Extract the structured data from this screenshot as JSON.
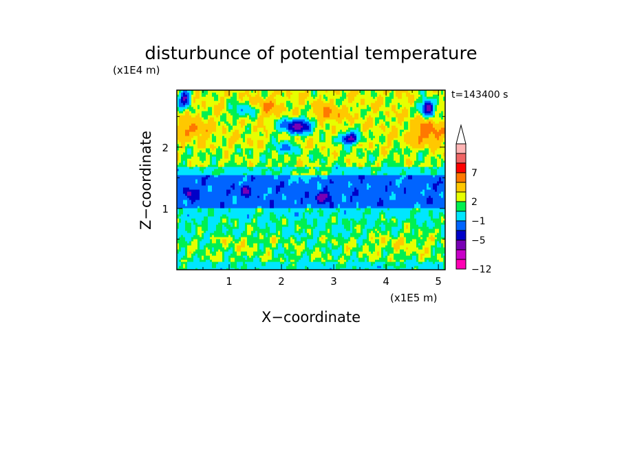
{
  "chart_data": {
    "type": "heatmap",
    "title": "disturbunce of potential temperature",
    "xlabel": "X−coordinate",
    "ylabel": "Z−coordinate",
    "x_scale_label": "(x1E5 m)",
    "y_scale_label": "(x1E4 m)",
    "time_label": "t=143400 s",
    "xlim": [
      0,
      5.13
    ],
    "ylim": [
      0,
      2.93
    ],
    "x_ticks": [
      {
        "value": 1,
        "label": "1"
      },
      {
        "value": 2,
        "label": "2"
      },
      {
        "value": 3,
        "label": "3"
      },
      {
        "value": 4,
        "label": "4"
      },
      {
        "value": 5,
        "label": "5"
      }
    ],
    "y_ticks": [
      {
        "value": 1,
        "label": "1"
      },
      {
        "value": 2,
        "label": "2"
      }
    ],
    "colorbar": {
      "levels": [
        -12,
        -10,
        -8,
        -5,
        -3,
        -1,
        1,
        2,
        3,
        5,
        7,
        9,
        11
      ],
      "colors": [
        "#ff00b4",
        "#c800c8",
        "#7800b4",
        "#0000c8",
        "#0064ff",
        "#00e6ff",
        "#00f050",
        "#e6ff00",
        "#ffc800",
        "#ff7800",
        "#ff0000",
        "#f06464",
        "#ffb4b4"
      ],
      "extend_top_color": "#ffffff",
      "labels": [
        {
          "value": -12,
          "label": "−12"
        },
        {
          "value": -5,
          "label": "−5"
        },
        {
          "value": -1,
          "label": "−1"
        },
        {
          "value": 2,
          "label": "2"
        },
        {
          "value": 7,
          "label": "7"
        }
      ]
    },
    "field_features": [
      {
        "desc": "cold",
        "x": 2.3,
        "z": 2.35,
        "value": -6
      },
      {
        "desc": "cold",
        "x": 3.3,
        "z": 2.15,
        "value": -6
      },
      {
        "desc": "cold",
        "x": 4.8,
        "z": 2.65,
        "value": -7
      },
      {
        "desc": "cold",
        "x": 0.2,
        "z": 2.75,
        "value": -5
      },
      {
        "desc": "cold",
        "x": 0.25,
        "z": 1.25,
        "value": -5
      },
      {
        "desc": "cold",
        "x": 2.8,
        "z": 1.2,
        "value": -6
      },
      {
        "desc": "cold",
        "x": 1.3,
        "z": 1.3,
        "value": -5
      },
      {
        "desc": "warm",
        "x": 4.8,
        "z": 2.25,
        "value": 4
      },
      {
        "desc": "warm",
        "x": 0.3,
        "z": 2.3,
        "value": 4
      },
      {
        "desc": "warm",
        "x": 2.9,
        "z": 2.55,
        "value": 4
      },
      {
        "desc": "warm",
        "x": 4.4,
        "z": 0.45,
        "value": 3
      }
    ]
  }
}
